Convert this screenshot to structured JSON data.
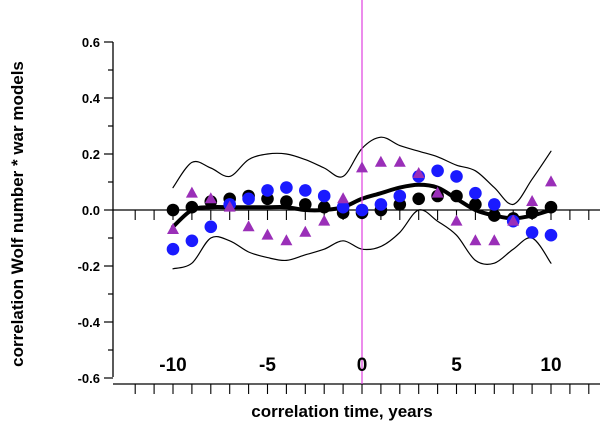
{
  "chart_data": {
    "type": "scatter",
    "xlabel": "correlation time, years",
    "ylabel": "correlation Wolf number * war models",
    "xlim": [
      -12,
      12.5
    ],
    "ylim": [
      -0.6,
      0.6
    ],
    "x_ticks": [
      -10,
      -5,
      0,
      5,
      10
    ],
    "x_tick_labels": [
      "-10",
      "-5",
      "0",
      "5",
      "10"
    ],
    "y_ticks": [
      -0.6,
      -0.4,
      -0.2,
      0.0,
      0.2,
      0.4,
      0.6
    ],
    "y_tick_labels": [
      "-0.6",
      "-0.4",
      "-0.2",
      "0.0",
      "0.2",
      "0.4",
      "0.6"
    ],
    "grid": false,
    "legend": "none",
    "vertical_marker": {
      "x": 0,
      "color": "#e040e0"
    },
    "series": [
      {
        "marker": "circle",
        "color": "#000000",
        "x": [
          -10,
          -9,
          -8,
          -7,
          -6,
          -5,
          -4,
          -3,
          -2,
          -1,
          0,
          1,
          2,
          3,
          4,
          5,
          6,
          7,
          8,
          9,
          10
        ],
        "values": [
          0.0,
          0.01,
          0.03,
          0.04,
          0.05,
          0.04,
          0.03,
          0.02,
          0.01,
          -0.01,
          -0.01,
          0.0,
          0.02,
          0.04,
          0.05,
          0.05,
          0.02,
          -0.02,
          -0.03,
          -0.01,
          0.01
        ]
      },
      {
        "marker": "circle",
        "color": "#1a1aff",
        "x": [
          -10,
          -9,
          -8,
          -7,
          -6,
          -5,
          -4,
          -3,
          -2,
          -1,
          0,
          1,
          2,
          3,
          4,
          5,
          6,
          7,
          8,
          9,
          10
        ],
        "values": [
          -0.14,
          -0.11,
          -0.06,
          0.02,
          0.04,
          0.07,
          0.08,
          0.07,
          0.05,
          0.01,
          0.0,
          0.02,
          0.05,
          0.12,
          0.14,
          0.12,
          0.06,
          0.02,
          -0.04,
          -0.08,
          -0.09
        ]
      },
      {
        "marker": "triangle",
        "color": "#9a2fb8",
        "x": [
          -10,
          -9,
          -8,
          -7,
          -6,
          -5,
          -4,
          -3,
          -2,
          -1,
          0,
          1,
          2,
          3,
          4,
          5,
          6,
          7,
          8,
          9,
          10
        ],
        "values": [
          -0.07,
          0.06,
          0.04,
          0.01,
          -0.06,
          -0.09,
          -0.11,
          -0.08,
          -0.04,
          0.04,
          0.15,
          0.17,
          0.17,
          0.13,
          0.06,
          -0.04,
          -0.11,
          -0.11,
          -0.04,
          0.03,
          0.1
        ]
      },
      {
        "style": "thick-line",
        "color": "#000000",
        "x": [
          -10,
          -9,
          -8,
          -7,
          -6,
          -5,
          -4,
          -3,
          -2,
          -1,
          0,
          1,
          2,
          3,
          4,
          5,
          6,
          7,
          8,
          9,
          10
        ],
        "values": [
          -0.06,
          0.0,
          0.01,
          0.01,
          0.01,
          0.01,
          0.01,
          0.0,
          0.0,
          0.01,
          0.04,
          0.06,
          0.08,
          0.09,
          0.08,
          0.04,
          0.0,
          -0.02,
          -0.03,
          -0.02,
          0.0
        ]
      },
      {
        "style": "thin-line",
        "color": "#000000",
        "x": [
          -10,
          -9,
          -8,
          -7,
          -6,
          -5,
          -4,
          -3,
          -2,
          -1,
          0,
          1,
          2,
          3,
          4,
          5,
          6,
          7,
          8,
          9,
          10
        ],
        "values": [
          0.08,
          0.17,
          0.15,
          0.12,
          0.18,
          0.2,
          0.2,
          0.18,
          0.15,
          0.12,
          0.22,
          0.26,
          0.23,
          0.21,
          0.19,
          0.16,
          0.14,
          0.08,
          0.02,
          0.11,
          0.21
        ]
      },
      {
        "style": "thin-line",
        "color": "#000000",
        "x": [
          -10,
          -9,
          -8,
          -7,
          -6,
          -5,
          -4,
          -3,
          -2,
          -1,
          0,
          1,
          2,
          3,
          4,
          5,
          6,
          7,
          8,
          9,
          10
        ],
        "values": [
          -0.21,
          -0.19,
          -0.1,
          -0.11,
          -0.15,
          -0.17,
          -0.18,
          -0.16,
          -0.14,
          -0.11,
          -0.14,
          -0.13,
          -0.08,
          0.0,
          -0.04,
          -0.09,
          -0.18,
          -0.19,
          -0.14,
          -0.1,
          -0.19
        ]
      }
    ]
  }
}
